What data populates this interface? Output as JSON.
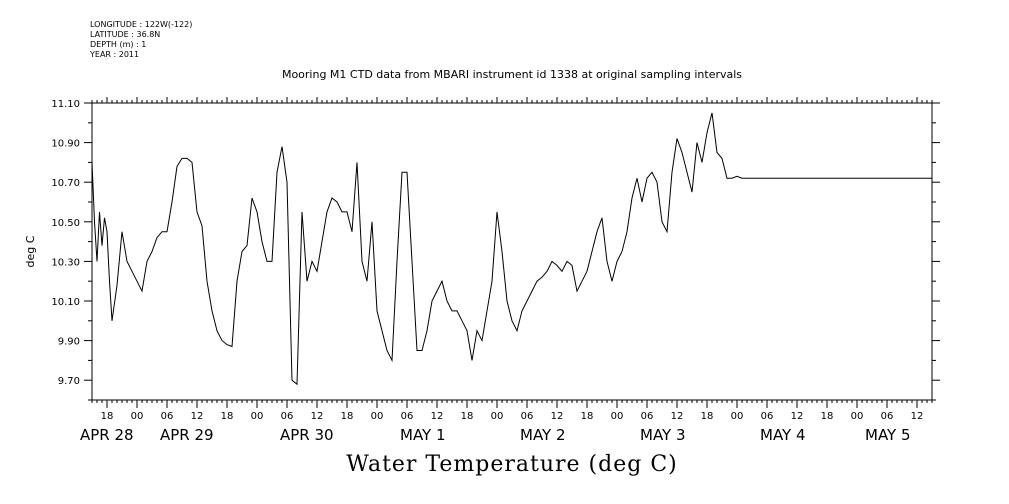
{
  "metadata": {
    "longitude": "LONGITUDE : 122W(-122)",
    "latitude": "LATITUDE : 36.8N",
    "depth": "DEPTH (m) : 1",
    "year": "YEAR : 2011"
  },
  "title": "Mooring M1 CTD data from MBARI instrument id 1338 at original sampling intervals",
  "bottom_title": "Water Temperature (deg C)",
  "chart_data": {
    "type": "line",
    "title": "Mooring M1 CTD data from MBARI instrument id 1338 at original sampling intervals",
    "xlabel": "",
    "ylabel": "deg C",
    "ylim": [
      9.6,
      11.1
    ],
    "xlim_hours": [
      0,
      168
    ],
    "yticks": [
      "9.70",
      "9.90",
      "10.10",
      "10.30",
      "10.50",
      "10.70",
      "10.90",
      "11.10"
    ],
    "hour_ticks": [
      "18",
      "00",
      "06",
      "12",
      "18",
      "00",
      "06",
      "12",
      "18",
      "00",
      "06",
      "12",
      "18",
      "00",
      "06",
      "12",
      "18",
      "00",
      "06",
      "12",
      "18",
      "00",
      "06",
      "12",
      "18",
      "00",
      "06",
      "12"
    ],
    "date_labels": [
      "APR 28",
      "APR 29",
      "APR 30",
      "MAY  1",
      "MAY  2",
      "MAY  3",
      "MAY  4",
      "MAY  5"
    ],
    "series": [
      {
        "color": "#000000",
        "x": [
          0,
          0.5,
          1,
          1.5,
          2,
          2.5,
          3,
          3.5,
          4,
          5,
          6,
          7,
          8,
          9,
          10,
          11,
          12,
          13,
          14,
          15,
          16,
          17,
          18,
          19,
          20,
          21,
          22,
          23,
          24,
          25,
          26,
          27,
          28,
          29,
          30,
          31,
          32,
          33,
          34,
          35,
          36,
          37,
          38,
          39,
          40,
          41,
          42,
          43,
          44,
          45,
          46,
          47,
          48,
          49,
          50,
          51,
          52,
          53,
          54,
          55,
          56,
          57,
          58,
          59,
          60,
          61,
          62,
          63,
          64,
          65,
          66,
          67,
          68,
          69,
          70,
          71,
          72,
          73,
          74,
          75,
          76,
          77,
          78,
          79,
          80,
          81,
          82,
          83,
          84,
          85,
          86,
          87,
          88,
          89,
          90,
          91,
          92,
          93,
          94,
          95,
          96,
          97,
          98,
          99,
          100,
          101,
          102,
          103,
          104,
          105,
          106,
          107,
          108,
          109,
          110,
          111,
          112,
          113,
          114,
          115,
          116,
          117,
          118,
          119,
          120,
          121,
          122,
          123,
          124,
          125,
          126,
          127,
          128,
          129,
          130,
          131,
          132,
          133,
          134,
          135,
          136,
          137,
          138,
          139,
          140,
          141,
          142,
          143,
          144,
          145,
          146,
          147,
          148,
          149,
          150,
          151,
          152,
          153,
          154,
          155,
          156,
          157,
          158,
          159,
          160,
          161,
          162,
          163,
          164,
          165,
          166,
          167,
          168
        ],
        "y": [
          10.8,
          10.5,
          10.3,
          10.55,
          10.38,
          10.52,
          10.45,
          10.2,
          10.0,
          10.18,
          10.45,
          10.3,
          10.25,
          10.2,
          10.15,
          10.3,
          10.35,
          10.42,
          10.45,
          10.45,
          10.6,
          10.78,
          10.82,
          10.82,
          10.8,
          10.55,
          10.48,
          10.2,
          10.05,
          9.95,
          9.9,
          9.88,
          9.87,
          10.2,
          10.35,
          10.38,
          10.62,
          10.55,
          10.4,
          10.3,
          10.3,
          10.75,
          10.88,
          10.7,
          9.7,
          9.68,
          10.55,
          10.2,
          10.3,
          10.25,
          10.4,
          10.55,
          10.62,
          10.6,
          10.55,
          10.55,
          10.45,
          10.8,
          10.3,
          10.2,
          10.5,
          10.05,
          9.95,
          9.85,
          9.8,
          10.3,
          10.75,
          10.75,
          10.3,
          9.85,
          9.85,
          9.95,
          10.1,
          10.15,
          10.2,
          10.1,
          10.05,
          10.05,
          10.0,
          9.95,
          9.8,
          9.95,
          9.9,
          10.05,
          10.2,
          10.55,
          10.35,
          10.1,
          10.0,
          9.95,
          10.05,
          10.1,
          10.15,
          10.2,
          10.22,
          10.25,
          10.3,
          10.28,
          10.25,
          10.3,
          10.28,
          10.15,
          10.2,
          10.25,
          10.35,
          10.45,
          10.52,
          10.3,
          10.2,
          10.3,
          10.35,
          10.45,
          10.62,
          10.72,
          10.6,
          10.72,
          10.75,
          10.7,
          10.5,
          10.45,
          10.75,
          10.92,
          10.85,
          10.75,
          10.65,
          10.9,
          10.8,
          10.95,
          11.05,
          10.85,
          10.82,
          10.72,
          10.72,
          10.73,
          10.72,
          10.72,
          10.72,
          10.72,
          10.72,
          10.72,
          10.72,
          10.72,
          10.72,
          10.72,
          10.72,
          10.72,
          10.72,
          10.72,
          10.72,
          10.72,
          10.72,
          10.72,
          10.72,
          10.72,
          10.72,
          10.72,
          10.72,
          10.72,
          10.72,
          10.72,
          10.72,
          10.72,
          10.72,
          10.72,
          10.72,
          10.72,
          10.72,
          10.72,
          10.72,
          10.72,
          10.72,
          10.72,
          10.72
        ]
      }
    ],
    "grid": false
  }
}
